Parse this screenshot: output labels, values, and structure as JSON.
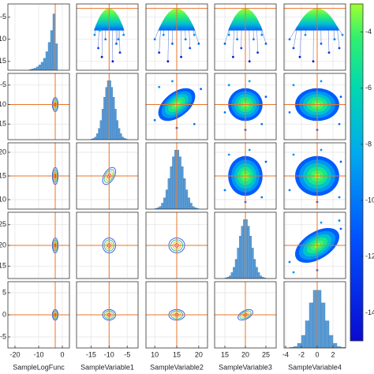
{
  "chart_data": {
    "type": "corner",
    "variables": [
      {
        "label": "SampleLogFunc",
        "mode": -3,
        "sd": 1,
        "xlim": [
          -23,
          3
        ],
        "xticks": [
          -20,
          -10,
          0
        ],
        "ylim": [
          -17,
          -2
        ],
        "yticks": [
          -15,
          -10,
          -5
        ]
      },
      {
        "label": "SampleVariable1",
        "mode": -10,
        "sd": 1.5,
        "xlim": [
          -19,
          -2
        ],
        "xticks": [
          -15,
          -10,
          -5
        ],
        "ylim": [
          -19,
          -2
        ],
        "yticks": [
          -15,
          -10,
          -5
        ]
      },
      {
        "label": "SampleVariable2",
        "mode": 15,
        "sd": 1.5,
        "xlim": [
          8,
          22
        ],
        "xticks": [
          10,
          15,
          20
        ],
        "ylim": [
          8,
          22
        ],
        "yticks": [
          10,
          15,
          20
        ]
      },
      {
        "label": "SampleVariable3",
        "mode": 20,
        "sd": 1.5,
        "xlim": [
          12.5,
          27.5
        ],
        "xticks": [
          15,
          20,
          25
        ],
        "ylim": [
          12,
          28
        ],
        "yticks": [
          15,
          20,
          25
        ]
      },
      {
        "label": "SampleVariable4",
        "mode": 0,
        "sd": 1,
        "xlim": [
          -4.2,
          3.6
        ],
        "xticks": [
          -4,
          -2,
          0,
          2
        ],
        "ylim": [
          -7.5,
          7.5
        ],
        "yticks": [
          -5,
          0,
          5
        ]
      }
    ],
    "hist_ylim": [
      0,
      100
    ],
    "histograms": [
      {
        "bins": [
          -14,
          -13,
          -12,
          -11,
          -10,
          -9,
          -8,
          -7,
          -6,
          -5,
          -4,
          -3,
          -2
        ],
        "counts": [
          1,
          2,
          3,
          5,
          8,
          12,
          18,
          28,
          42,
          60,
          85,
          40
        ]
      },
      {
        "bins": [
          -15,
          -14.5,
          -14,
          -13.5,
          -13,
          -12.5,
          -12,
          -11.5,
          -11,
          -10.5,
          -10,
          -9.5,
          -9,
          -8.5,
          -8,
          -7.5,
          -7,
          -6.5,
          -6,
          -5.5,
          -5
        ],
        "counts": [
          1,
          2,
          4,
          9,
          17,
          29,
          46,
          64,
          79,
          89,
          89,
          79,
          64,
          46,
          29,
          17,
          9,
          4,
          2,
          1
        ]
      },
      {
        "bins": [
          10,
          10.5,
          11,
          11.5,
          12,
          12.5,
          13,
          13.5,
          14,
          14.5,
          15,
          15.5,
          16,
          16.5,
          17,
          17.5,
          18,
          18.5,
          19,
          19.5,
          20
        ],
        "counts": [
          1,
          2,
          4,
          9,
          17,
          29,
          46,
          64,
          79,
          89,
          89,
          79,
          64,
          46,
          29,
          17,
          9,
          4,
          2,
          1
        ]
      },
      {
        "bins": [
          15,
          15.5,
          16,
          16.5,
          17,
          17.5,
          18,
          18.5,
          19,
          19.5,
          20,
          20.5,
          21,
          21.5,
          22,
          22.5,
          23,
          23.5,
          24,
          24.5,
          25
        ],
        "counts": [
          1,
          2,
          4,
          9,
          17,
          29,
          46,
          64,
          79,
          89,
          89,
          79,
          64,
          46,
          29,
          17,
          9,
          4,
          2,
          1
        ]
      },
      {
        "bins": [
          -3.5,
          -3,
          -2.5,
          -2,
          -1.5,
          -1,
          -0.5,
          0,
          0.5,
          1,
          1.5,
          2,
          2.5,
          3,
          3.5
        ],
        "counts": [
          1,
          2,
          7,
          19,
          41,
          68,
          87,
          87,
          68,
          41,
          19,
          7,
          2,
          1
        ]
      }
    ],
    "upper": [
      {
        "row": 0,
        "col": 1,
        "depth": 5,
        "x": [
          -14,
          -13,
          -12,
          -11,
          -9,
          -8,
          -7,
          -6,
          -12.5,
          -7.5
        ],
        "y": [
          -9,
          -12,
          -14,
          -10,
          -15,
          -11,
          -13,
          -9,
          -8,
          -10
        ]
      },
      {
        "row": 0,
        "col": 2,
        "depth": 5,
        "x": [
          10,
          11,
          12,
          13,
          14,
          16,
          17,
          18,
          19,
          20
        ],
        "y": [
          -10,
          -13,
          -9,
          -15,
          -11,
          -14,
          -10,
          -12,
          -9,
          -11
        ]
      },
      {
        "row": 0,
        "col": 3,
        "depth": 5,
        "x": [
          15,
          16,
          17,
          18,
          19,
          21,
          22,
          23,
          24,
          25
        ],
        "y": [
          -11,
          -9,
          -14,
          -10,
          -12,
          -15,
          -10,
          -13,
          -9,
          -11
        ]
      },
      {
        "row": 0,
        "col": 4,
        "depth": 5,
        "x": [
          -3.5,
          -3,
          -2.2,
          -1.5,
          -0.5,
          0.5,
          1.5,
          2.2,
          2.8,
          3.2
        ],
        "y": [
          -10,
          -12,
          -14,
          -9,
          -15,
          -11,
          -13,
          -10,
          -12,
          -9
        ]
      },
      {
        "row": 1,
        "col": 2,
        "rho": 0.5,
        "x": [
          10,
          20.5,
          11,
          19,
          15,
          14
        ],
        "y": [
          -14,
          -6,
          -5.5,
          -15,
          -16,
          -4
        ],
        "c": [
          -10,
          -11,
          -9,
          -10,
          -12,
          -9
        ]
      },
      {
        "row": 1,
        "col": 3,
        "rho": 0,
        "x": [
          15,
          25,
          16,
          24,
          20,
          21
        ],
        "y": [
          -12,
          -8,
          -5,
          -15,
          -16.5,
          -4
        ],
        "c": [
          -10,
          -11,
          -9,
          -10,
          -12,
          -9
        ]
      },
      {
        "row": 1,
        "col": 4,
        "rho": 0,
        "x": [
          -3.5,
          3,
          -3,
          2.8,
          0,
          0.5
        ],
        "y": [
          -12,
          -8,
          -5,
          -15,
          -16.5,
          -4
        ],
        "c": [
          -10,
          -11,
          -9,
          -10,
          -12,
          -9
        ]
      },
      {
        "row": 2,
        "col": 3,
        "rho": 0,
        "x": [
          15,
          25,
          16,
          24,
          20,
          21
        ],
        "y": [
          12,
          18,
          19.5,
          10.5,
          9.5,
          20.5
        ],
        "c": [
          -10,
          -11,
          -9,
          -10,
          -12,
          -9
        ]
      },
      {
        "row": 2,
        "col": 4,
        "rho": 0,
        "x": [
          -3.5,
          3,
          -3,
          2.8,
          0,
          0.5
        ],
        "y": [
          12,
          18,
          19.5,
          10.5,
          9.5,
          20.5
        ],
        "c": [
          -10,
          -11,
          -9,
          -10,
          -12,
          -9
        ]
      },
      {
        "row": 3,
        "col": 4,
        "rho": 0.5,
        "x": [
          -3.5,
          3,
          -3,
          2.8,
          0,
          0.5
        ],
        "y": [
          16,
          24,
          13.5,
          26,
          14,
          25.5
        ],
        "c": [
          -10,
          -11,
          -9,
          -10,
          -12,
          -9
        ]
      }
    ],
    "lower": [
      {
        "row": 1,
        "col": 0,
        "rho": 0
      },
      {
        "row": 2,
        "col": 0,
        "rho": 0
      },
      {
        "row": 3,
        "col": 0,
        "rho": 0
      },
      {
        "row": 4,
        "col": 0,
        "rho": 0
      },
      {
        "row": 2,
        "col": 1,
        "rho": 0.5
      },
      {
        "row": 3,
        "col": 1,
        "rho": 0
      },
      {
        "row": 4,
        "col": 1,
        "rho": 0
      },
      {
        "row": 3,
        "col": 2,
        "rho": 0
      },
      {
        "row": 4,
        "col": 2,
        "rho": 0
      },
      {
        "row": 4,
        "col": 3,
        "rho": 0.5
      }
    ],
    "contour_levels": [
      0.3,
      0.6,
      0.9,
      1.2
    ],
    "colorbar": {
      "lim": [
        -15,
        -3
      ],
      "ticks": [
        -4,
        -6,
        -8,
        -10,
        -12,
        -14
      ]
    }
  }
}
